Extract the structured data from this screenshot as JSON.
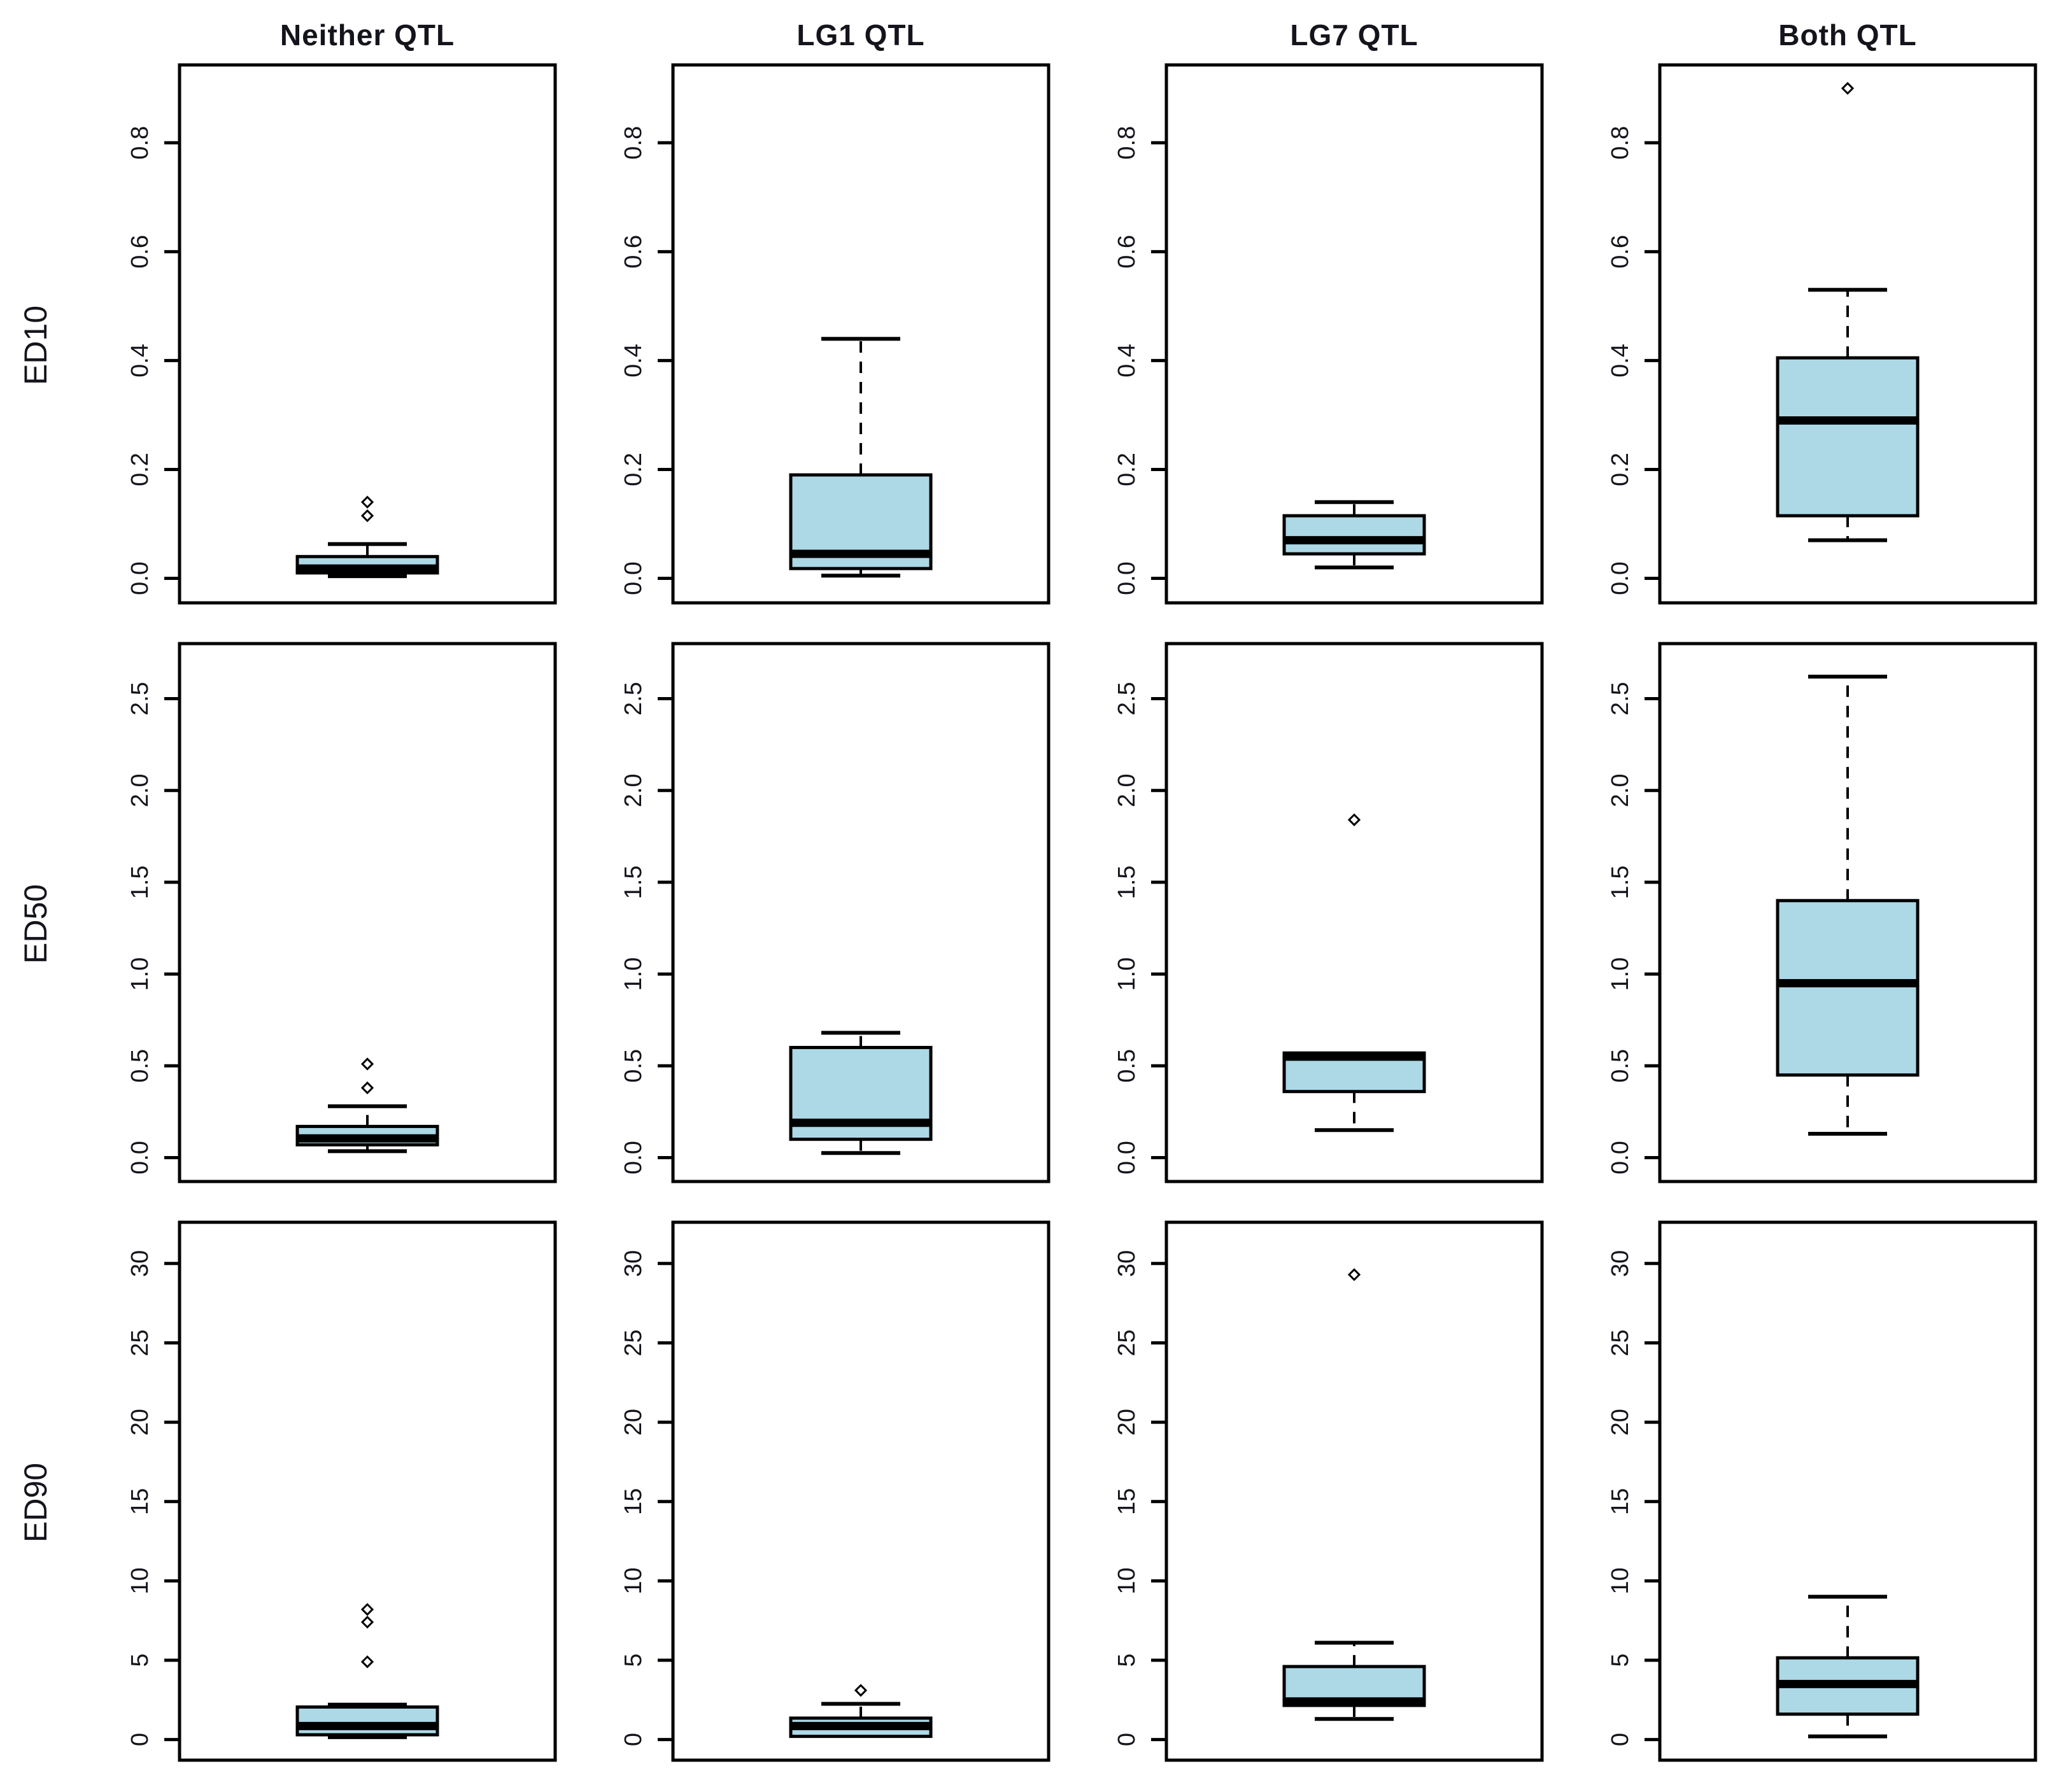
{
  "figure": {
    "background": "#ffffff",
    "box_fill": "#add8e6",
    "line_color": "#000000",
    "text_color": "#14141c"
  },
  "chart_data": {
    "type": "boxplot",
    "layout": "grid-3x4",
    "legend": "none",
    "x_axis_labels": "none",
    "columns": [
      "Neither QTL",
      "LG1 QTL",
      "LG7 QTL",
      "Both QTL"
    ],
    "rows": [
      {
        "label": "ED10",
        "ylim": [
          -0.045,
          0.943
        ],
        "yticks": [
          {
            "value": 0.0,
            "label": "0.0"
          },
          {
            "value": 0.2,
            "label": "0.2"
          },
          {
            "value": 0.4,
            "label": "0.4"
          },
          {
            "value": 0.6,
            "label": "0.6"
          },
          {
            "value": 0.8,
            "label": "0.8"
          }
        ]
      },
      {
        "label": "ED50",
        "ylim": [
          -0.13,
          2.8
        ],
        "yticks": [
          {
            "value": 0.0,
            "label": "0.0"
          },
          {
            "value": 0.5,
            "label": "0.5"
          },
          {
            "value": 1.0,
            "label": "1.0"
          },
          {
            "value": 1.5,
            "label": "1.5"
          },
          {
            "value": 2.0,
            "label": "2.0"
          },
          {
            "value": 2.5,
            "label": "2.5"
          }
        ]
      },
      {
        "label": "ED90",
        "ylim": [
          -1.3,
          32.6
        ],
        "yticks": [
          {
            "value": 0,
            "label": "0"
          },
          {
            "value": 5,
            "label": "5"
          },
          {
            "value": 10,
            "label": "10"
          },
          {
            "value": 15,
            "label": "15"
          },
          {
            "value": 20,
            "label": "20"
          },
          {
            "value": 25,
            "label": "25"
          },
          {
            "value": 30,
            "label": "30"
          }
        ]
      }
    ],
    "boxes": [
      [
        {
          "low": 0.004,
          "q1": 0.01,
          "median": 0.018,
          "q3": 0.04,
          "high": 0.063,
          "outliers": [
            0.115,
            0.14
          ]
        },
        {
          "low": 0.005,
          "q1": 0.018,
          "median": 0.045,
          "q3": 0.19,
          "high": 0.44,
          "outliers": []
        },
        {
          "low": 0.02,
          "q1": 0.045,
          "median": 0.07,
          "q3": 0.115,
          "high": 0.14,
          "outliers": []
        },
        {
          "low": 0.07,
          "q1": 0.115,
          "median": 0.29,
          "q3": 0.405,
          "high": 0.53,
          "outliers": [
            0.9
          ]
        }
      ],
      [
        {
          "low": 0.035,
          "q1": 0.07,
          "median": 0.105,
          "q3": 0.17,
          "high": 0.28,
          "outliers": [
            0.38,
            0.51
          ]
        },
        {
          "low": 0.025,
          "q1": 0.1,
          "median": 0.19,
          "q3": 0.6,
          "high": 0.68,
          "outliers": []
        },
        {
          "low": 0.15,
          "q1": 0.36,
          "median": 0.55,
          "q3": 0.57,
          "high": 0.57,
          "outliers": [
            1.84
          ]
        },
        {
          "low": 0.13,
          "q1": 0.45,
          "median": 0.95,
          "q3": 1.4,
          "high": 2.62,
          "outliers": []
        }
      ],
      [
        {
          "low": 0.15,
          "q1": 0.3,
          "median": 0.85,
          "q3": 2.05,
          "high": 2.2,
          "outliers": [
            4.9,
            7.4,
            8.2
          ]
        },
        {
          "low": 0.1,
          "q1": 0.2,
          "median": 0.85,
          "q3": 1.35,
          "high": 2.25,
          "outliers": [
            3.1
          ]
        },
        {
          "low": 1.3,
          "q1": 2.15,
          "median": 2.4,
          "q3": 4.6,
          "high": 6.1,
          "outliers": [
            29.3
          ]
        },
        {
          "low": 0.2,
          "q1": 1.6,
          "median": 3.5,
          "q3": 5.15,
          "high": 9.0,
          "outliers": []
        }
      ]
    ]
  }
}
